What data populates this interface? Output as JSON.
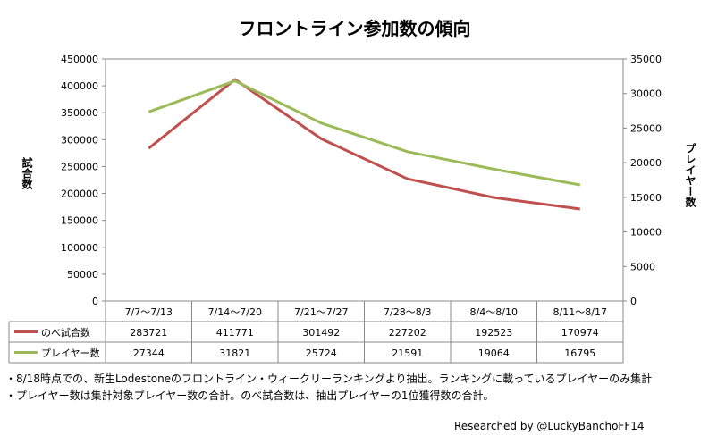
{
  "chart_data": {
    "type": "line",
    "title": "フロントライン参加数の傾向",
    "ylabel_left": "試合数",
    "ylabel_right": "プレイヤー数",
    "categories": [
      "7/7～7/13",
      "7/14～7/20",
      "7/21～7/27",
      "7/28～8/3",
      "8/4～8/10",
      "8/11～8/17"
    ],
    "ylim_left": [
      0,
      450000
    ],
    "yticks_left": [
      "450000",
      "400000",
      "350000",
      "300000",
      "250000",
      "200000",
      "150000",
      "100000",
      "50000",
      "0"
    ],
    "ylim_right": [
      0,
      35000
    ],
    "yticks_right": [
      "35000",
      "30000",
      "25000",
      "20000",
      "15000",
      "10000",
      "5000",
      "0"
    ],
    "series": [
      {
        "name": "のべ試合数",
        "axis": "left",
        "color": "#c0504d",
        "values": [
          283721,
          411771,
          301492,
          227202,
          192523,
          170974
        ],
        "labels": [
          "283721",
          "411771",
          "301492",
          "227202",
          "192523",
          "170974"
        ]
      },
      {
        "name": "プレイヤー数",
        "axis": "right",
        "color": "#9bbb59",
        "values": [
          27344,
          31821,
          25724,
          21591,
          19064,
          16795
        ],
        "labels": [
          "27344",
          "31821",
          "25724",
          "21591",
          "19064",
          "16795"
        ]
      }
    ]
  },
  "notes": [
    "・8/18時点での、新生Lodestoneのフロントライン・ウィークリーランキングより抽出。ランキングに載っているプレイヤーのみ集計",
    "・プレイヤー数は集計対象プレイヤー数の合計。のべ試合数は、抽出プレイヤーの1位獲得数の合計。"
  ],
  "credit": "Researched by @LuckyBanchoFF14"
}
